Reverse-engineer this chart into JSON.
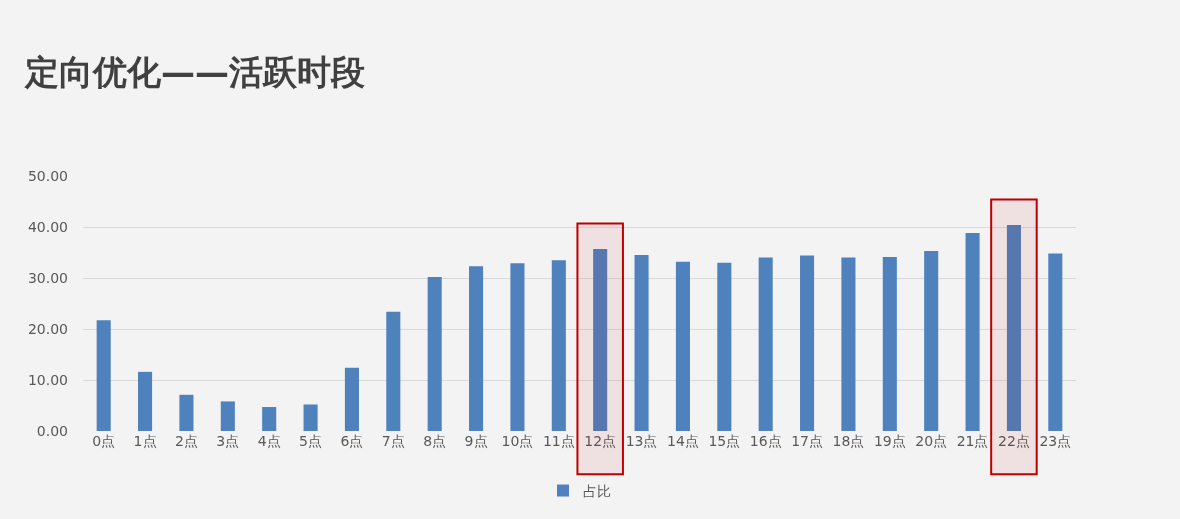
{
  "chart_data": {
    "type": "bar",
    "title": "定向优化——活跃时段",
    "categories": [
      "0点",
      "1点",
      "2点",
      "3点",
      "4点",
      "5点",
      "6点",
      "7点",
      "8点",
      "9点",
      "10点",
      "11点",
      "12点",
      "13点",
      "14点",
      "15点",
      "16点",
      "17点",
      "18点",
      "19点",
      "20点",
      "21点",
      "22点",
      "23点"
    ],
    "series": [
      {
        "name": "占比",
        "color": "#4f81bd",
        "values": [
          21.7,
          11.6,
          7.1,
          5.8,
          4.7,
          5.2,
          12.4,
          23.4,
          30.2,
          32.3,
          32.9,
          33.5,
          35.7,
          34.5,
          33.2,
          33.0,
          34.0,
          34.4,
          34.0,
          34.1,
          35.3,
          38.8,
          40.4,
          34.8
        ]
      }
    ],
    "ylim": [
      0,
      50
    ],
    "yticks": [
      {
        "value": 0,
        "label": "0.00"
      },
      {
        "value": 10,
        "label": "10.00"
      },
      {
        "value": 20,
        "label": "20.00"
      },
      {
        "value": 30,
        "label": "30.00"
      },
      {
        "value": 40,
        "label": "40.00"
      },
      {
        "value": 50,
        "label": "50.00"
      }
    ],
    "grid": "y",
    "legend": "bottom",
    "bands": [
      {
        "axis": "x",
        "from": "12点",
        "to": "12点",
        "color": "#c00000"
      },
      {
        "axis": "x",
        "from": "22点",
        "to": "22点",
        "color": "#c00000"
      }
    ]
  }
}
